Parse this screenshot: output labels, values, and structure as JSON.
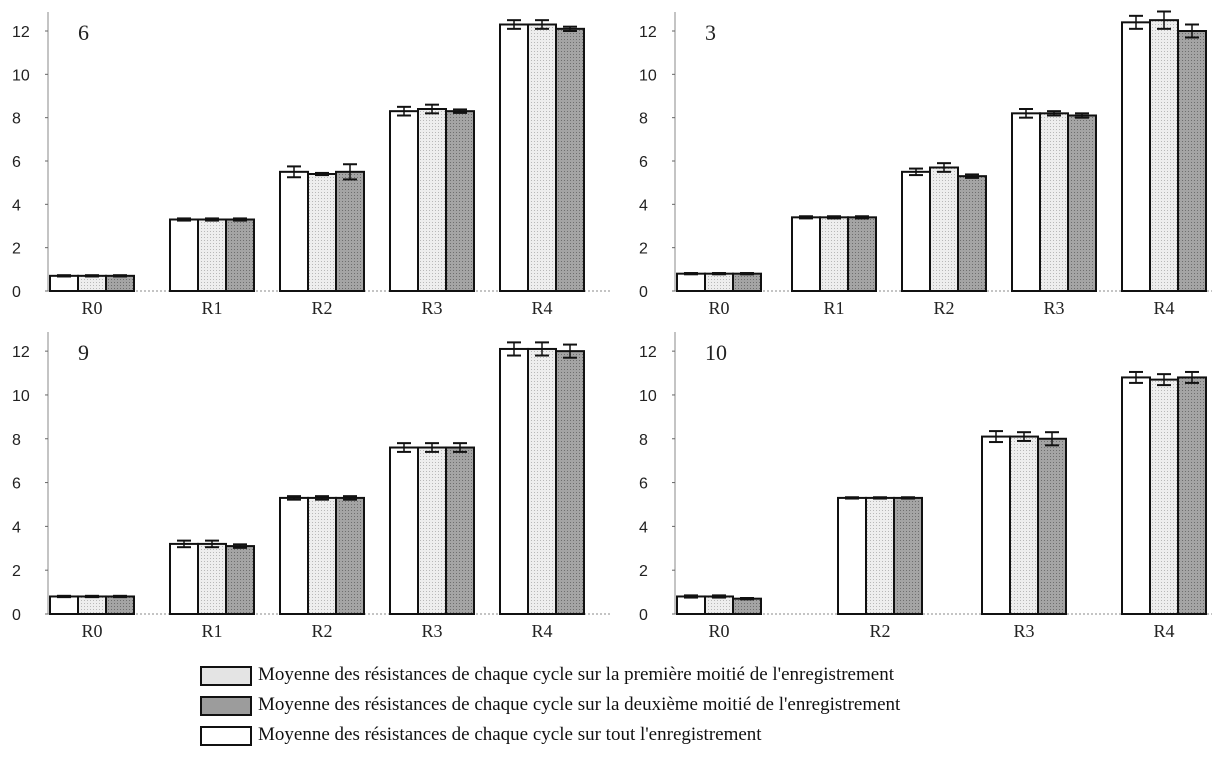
{
  "colors": {
    "tout": "#ffffff",
    "premiere": "#e4e4e4",
    "deuxieme": "#9c9c9c",
    "outline": "#111111"
  },
  "legend": [
    {
      "key": "premiere",
      "label": "Moyenne des résistances de chaque cycle sur la première moitié de l'enregistrement"
    },
    {
      "key": "deuxieme",
      "label": "Moyenne des résistances de chaque cycle sur la deuxième moitié de l'enregistrement"
    },
    {
      "key": "tout",
      "label": "Moyenne des résistances de chaque cycle sur tout l'enregistrement"
    }
  ],
  "chart_data": [
    {
      "type": "bar",
      "title": "6",
      "categories": [
        "R0",
        "R1",
        "R2",
        "R3",
        "R4"
      ],
      "ylim": [
        0,
        12.6
      ],
      "yticks": [
        0,
        2,
        4,
        6,
        8,
        10,
        12
      ],
      "series": [
        {
          "key": "tout",
          "values": [
            0.7,
            3.3,
            5.5,
            8.3,
            12.3
          ],
          "errors": [
            0.03,
            0.05,
            0.25,
            0.2,
            0.2
          ]
        },
        {
          "key": "premiere",
          "values": [
            0.7,
            3.3,
            5.4,
            8.4,
            12.3
          ],
          "errors": [
            0.03,
            0.05,
            0.05,
            0.2,
            0.2
          ]
        },
        {
          "key": "deuxieme",
          "values": [
            0.7,
            3.3,
            5.5,
            8.3,
            12.1
          ],
          "errors": [
            0.03,
            0.05,
            0.35,
            0.08,
            0.1
          ]
        }
      ]
    },
    {
      "type": "bar",
      "title": "3",
      "categories": [
        "R0",
        "R1",
        "R2",
        "R3",
        "R4"
      ],
      "ylim": [
        0,
        12.6
      ],
      "yticks": [
        0,
        2,
        4,
        6,
        8,
        10,
        12
      ],
      "series": [
        {
          "key": "tout",
          "values": [
            0.8,
            3.4,
            5.5,
            8.2,
            12.4
          ],
          "errors": [
            0.03,
            0.05,
            0.15,
            0.2,
            0.3
          ]
        },
        {
          "key": "premiere",
          "values": [
            0.8,
            3.4,
            5.7,
            8.2,
            12.5
          ],
          "errors": [
            0.03,
            0.05,
            0.2,
            0.1,
            0.4
          ]
        },
        {
          "key": "deuxieme",
          "values": [
            0.8,
            3.4,
            5.3,
            8.1,
            12.0
          ],
          "errors": [
            0.03,
            0.05,
            0.08,
            0.1,
            0.3
          ]
        }
      ]
    },
    {
      "type": "bar",
      "title": "9",
      "categories": [
        "R0",
        "R1",
        "R2",
        "R3",
        "R4"
      ],
      "ylim": [
        0,
        12.6
      ],
      "yticks": [
        0,
        2,
        4,
        6,
        8,
        10,
        12
      ],
      "series": [
        {
          "key": "tout",
          "values": [
            0.8,
            3.2,
            5.3,
            7.6,
            12.1
          ],
          "errors": [
            0.03,
            0.15,
            0.08,
            0.2,
            0.3
          ]
        },
        {
          "key": "premiere",
          "values": [
            0.8,
            3.2,
            5.3,
            7.6,
            12.1
          ],
          "errors": [
            0.03,
            0.15,
            0.08,
            0.2,
            0.3
          ]
        },
        {
          "key": "deuxieme",
          "values": [
            0.8,
            3.1,
            5.3,
            7.6,
            12.0
          ],
          "errors": [
            0.03,
            0.08,
            0.08,
            0.2,
            0.3
          ]
        }
      ]
    },
    {
      "type": "bar",
      "title": "10",
      "categories": [
        "R0",
        "R2",
        "R3",
        "R4"
      ],
      "ylim": [
        0,
        12.6
      ],
      "yticks": [
        0,
        2,
        4,
        6,
        8,
        10,
        12
      ],
      "series": [
        {
          "key": "tout",
          "values": [
            0.8,
            5.3,
            8.1,
            10.8
          ],
          "errors": [
            0.05,
            0.03,
            0.25,
            0.25
          ]
        },
        {
          "key": "premiere",
          "values": [
            0.8,
            5.3,
            8.1,
            10.7
          ],
          "errors": [
            0.05,
            0.03,
            0.2,
            0.25
          ]
        },
        {
          "key": "deuxieme",
          "values": [
            0.7,
            5.3,
            8.0,
            10.8
          ],
          "errors": [
            0.03,
            0.03,
            0.3,
            0.25
          ]
        }
      ]
    }
  ]
}
